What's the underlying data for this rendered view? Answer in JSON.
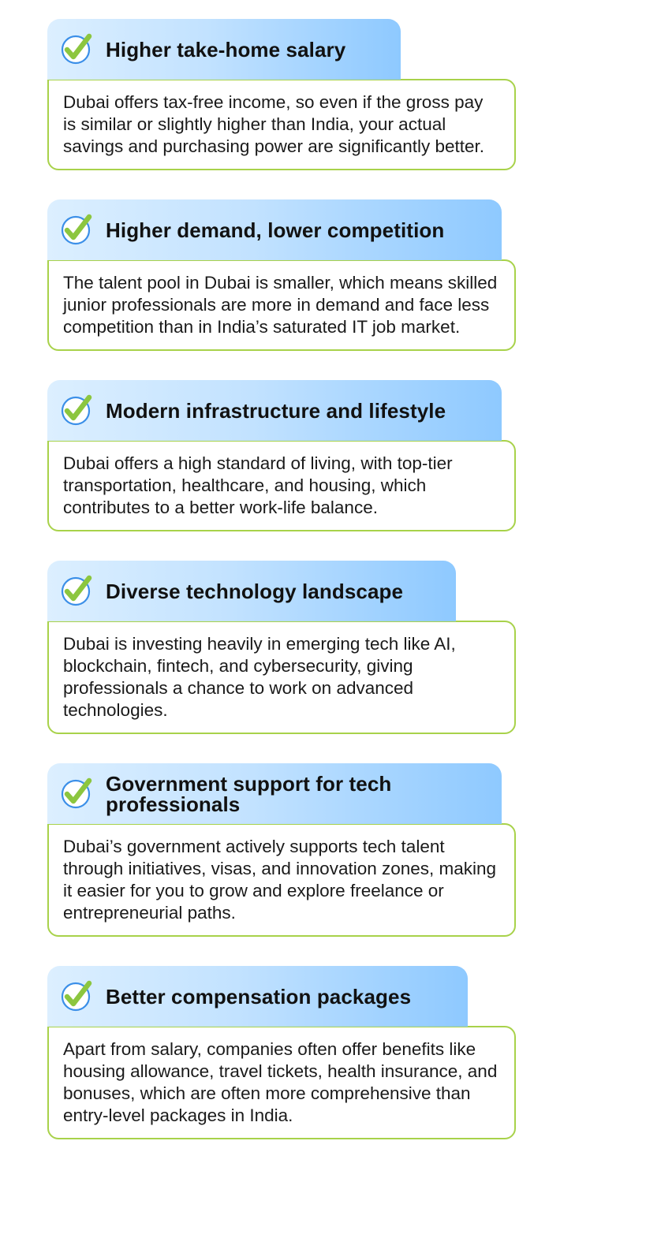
{
  "cards": [
    {
      "title": "Higher take-home salary",
      "body": "Dubai offers tax-free income, so even if the gross pay is similar or slightly higher than India, your actual savings and purchasing power are significantly better."
    },
    {
      "title": "Higher demand, lower competition",
      "body": "The talent pool in Dubai is smaller, which means skilled junior professionals are more in demand and face less competition than in India’s saturated IT job market."
    },
    {
      "title": "Modern infrastructure and lifestyle",
      "body": "Dubai offers a high standard of living, with top-tier transportation, healthcare, and housing, which contributes to a better work-life balance."
    },
    {
      "title": "Diverse technology landscape",
      "body": "Dubai is investing heavily in emerging tech like AI, blockchain, fintech, and cybersecurity, giving professionals a chance to work on advanced technologies."
    },
    {
      "title": "Government support for tech professionals",
      "body": "Dubai’s government actively supports tech talent through initiatives, visas, and innovation zones, making it easier for you to grow and explore freelance or entrepreneurial paths."
    },
    {
      "title": "Better compensation packages",
      "body": "Apart from salary, companies often offer benefits like housing allowance, travel tickets, health insurance, and bonuses, which are often more comprehensive than entry-level packages in India."
    }
  ],
  "icon": "check-circle-icon",
  "colors": {
    "header_gradient_start": "#dcefff",
    "header_gradient_end": "#8ec9ff",
    "border_green": "#a8d24a",
    "check_green": "#8cc63f",
    "circle_blue": "#3b8fe8"
  }
}
